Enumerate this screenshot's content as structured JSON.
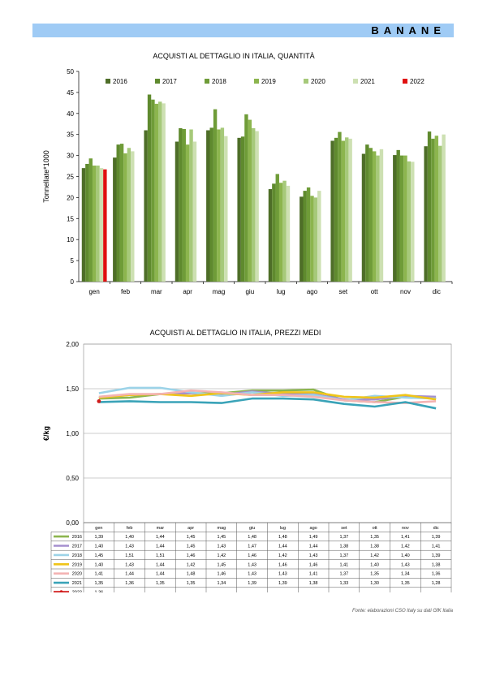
{
  "banner": {
    "title": "BANANE"
  },
  "chart_data": [
    {
      "type": "bar",
      "title": "ACQUISTI AL DETTAGLIO IN ITALIA, QUANTITÀ",
      "xlabel": "",
      "ylabel": "Tonnellate*1000",
      "ylim": [
        0,
        50
      ],
      "yticks": [
        "0",
        "5",
        "10",
        "15",
        "20",
        "25",
        "30",
        "35",
        "40",
        "45",
        "50"
      ],
      "legend_position": "top",
      "categories": [
        "gen",
        "feb",
        "mar",
        "apr",
        "mag",
        "giu",
        "lug",
        "ago",
        "set",
        "ott",
        "nov",
        "dic"
      ],
      "series": [
        {
          "name": "2016",
          "color": "#4e6e28",
          "values": [
            27.0,
            29.5,
            36.0,
            33.3,
            36.0,
            34.2,
            22.0,
            20.2,
            33.5,
            30.4,
            30.1,
            32.2
          ]
        },
        {
          "name": "2017",
          "color": "#5f8a2e",
          "values": [
            28.0,
            32.6,
            44.5,
            36.5,
            36.6,
            34.5,
            23.3,
            21.6,
            34.2,
            32.6,
            31.3,
            35.7
          ]
        },
        {
          "name": "2018",
          "color": "#6f9c38",
          "values": [
            29.3,
            32.8,
            43.3,
            36.3,
            41.0,
            39.8,
            25.6,
            22.4,
            35.6,
            31.8,
            30.0,
            34.0
          ]
        },
        {
          "name": "2019",
          "color": "#8cb54e",
          "values": [
            27.6,
            30.5,
            42.3,
            32.6,
            36.2,
            38.5,
            23.5,
            20.4,
            33.5,
            31.0,
            30.0,
            34.7
          ]
        },
        {
          "name": "2020",
          "color": "#a6c97a",
          "values": [
            27.6,
            31.8,
            42.8,
            36.2,
            36.6,
            36.5,
            24.0,
            20.0,
            34.3,
            30.0,
            28.6,
            32.3
          ]
        },
        {
          "name": "2021",
          "color": "#cde0b2",
          "values": [
            27.0,
            31.0,
            42.4,
            33.3,
            34.6,
            35.8,
            22.8,
            21.6,
            34.0,
            31.5,
            28.5,
            35.0
          ]
        },
        {
          "name": "2022",
          "color": "#e01010",
          "values": [
            26.7,
            null,
            null,
            null,
            null,
            null,
            null,
            null,
            null,
            null,
            null,
            null
          ]
        }
      ]
    },
    {
      "type": "line",
      "title": "ACQUISTI AL DETTAGLIO IN ITALIA, PREZZI MEDI",
      "xlabel": "",
      "ylabel": "€/kg",
      "ylim": [
        0,
        2
      ],
      "yticks": [
        "0,00",
        "0,50",
        "1,00",
        "1,50",
        "2,00"
      ],
      "grid": true,
      "legend_position": "table",
      "categories": [
        "gen",
        "feb",
        "mar",
        "apr",
        "mag",
        "giu",
        "lug",
        "ago",
        "set",
        "ott",
        "nov",
        "dic"
      ],
      "series": [
        {
          "name": "2016",
          "color": "#8cb54e",
          "values": [
            1.39,
            1.4,
            1.44,
            1.45,
            1.45,
            1.48,
            1.48,
            1.49,
            1.37,
            1.35,
            1.41,
            1.39
          ],
          "labels": [
            "1,39",
            "1,40",
            "1,44",
            "1,45",
            "1,45",
            "1,48",
            "1,48",
            "1,49",
            "1,37",
            "1,35",
            "1,41",
            "1,39"
          ]
        },
        {
          "name": "2017",
          "color": "#a58fcf",
          "values": [
            1.4,
            1.43,
            1.44,
            1.45,
            1.43,
            1.47,
            1.44,
            1.44,
            1.38,
            1.38,
            1.42,
            1.41
          ],
          "labels": [
            "1,40",
            "1,43",
            "1,44",
            "1,45",
            "1,43",
            "1,47",
            "1,44",
            "1,44",
            "1,38",
            "1,38",
            "1,42",
            "1,41"
          ]
        },
        {
          "name": "2018",
          "color": "#9cd3e8",
          "values": [
            1.45,
            1.51,
            1.51,
            1.46,
            1.42,
            1.46,
            1.42,
            1.43,
            1.37,
            1.42,
            1.4,
            1.39
          ],
          "labels": [
            "1,45",
            "1,51",
            "1,51",
            "1,46",
            "1,42",
            "1,46",
            "1,42",
            "1,43",
            "1,37",
            "1,42",
            "1,40",
            "1,39"
          ]
        },
        {
          "name": "2019",
          "color": "#f0c419",
          "values": [
            1.4,
            1.43,
            1.44,
            1.42,
            1.45,
            1.43,
            1.46,
            1.46,
            1.41,
            1.4,
            1.43,
            1.38
          ],
          "labels": [
            "1,40",
            "1,43",
            "1,44",
            "1,42",
            "1,45",
            "1,43",
            "1,46",
            "1,46",
            "1,41",
            "1,40",
            "1,43",
            "1,38"
          ]
        },
        {
          "name": "2020",
          "color": "#f3b3b3",
          "values": [
            1.41,
            1.44,
            1.44,
            1.48,
            1.46,
            1.43,
            1.43,
            1.41,
            1.37,
            1.35,
            1.34,
            1.36
          ],
          "labels": [
            "1,41",
            "1,44",
            "1,44",
            "1,48",
            "1,46",
            "1,43",
            "1,43",
            "1,41",
            "1,37",
            "1,35",
            "1,34",
            "1,36"
          ]
        },
        {
          "name": "2021",
          "color": "#3aa3b8",
          "values": [
            1.35,
            1.36,
            1.35,
            1.35,
            1.34,
            1.39,
            1.39,
            1.38,
            1.33,
            1.3,
            1.35,
            1.28
          ],
          "labels": [
            "1,35",
            "1,36",
            "1,35",
            "1,35",
            "1,34",
            "1,39",
            "1,39",
            "1,38",
            "1,33",
            "1,30",
            "1,35",
            "1,28"
          ]
        },
        {
          "name": "2022",
          "color": "#d11a1a",
          "values": [
            1.36,
            null,
            null,
            null,
            null,
            null,
            null,
            null,
            null,
            null,
            null,
            null
          ],
          "labels": [
            "1,36",
            "",
            "",
            "",
            "",
            "",
            "",
            "",
            "",
            "",
            "",
            ""
          ]
        }
      ]
    }
  ],
  "source": "Fonte: elaborazioni CSO Italy su dati GfK Italia"
}
